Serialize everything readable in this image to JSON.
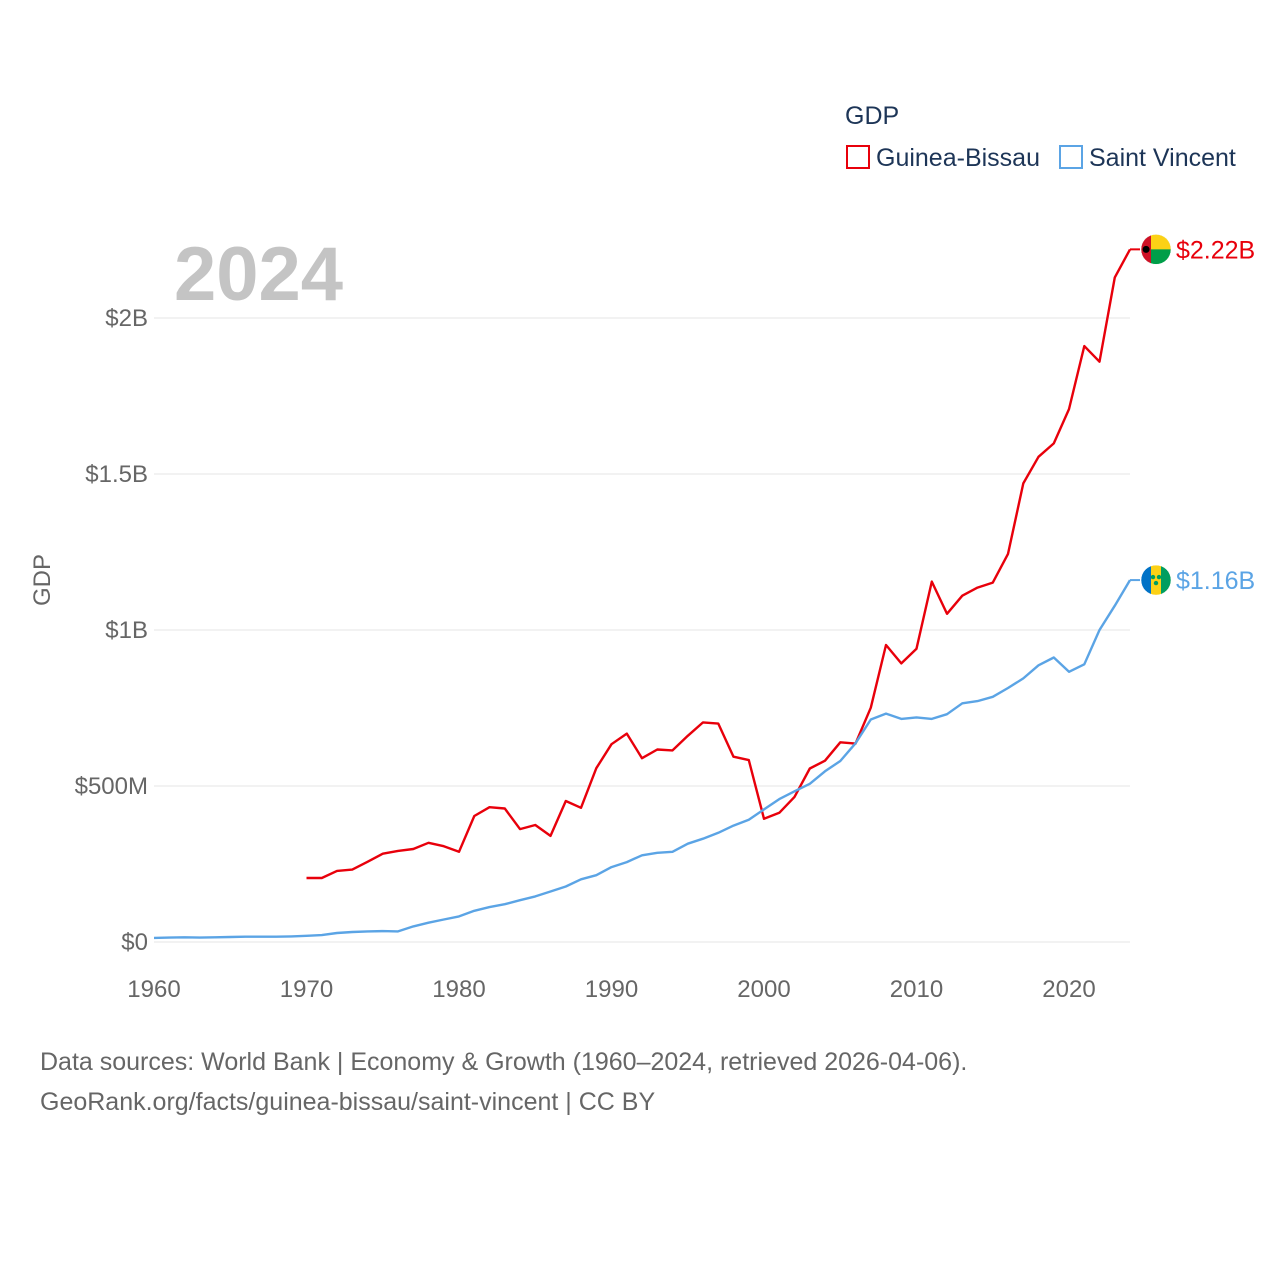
{
  "chart_data": {
    "type": "line",
    "year_label": "2024",
    "ylabel": "GDP",
    "legend": {
      "title": "GDP",
      "position": "top-right"
    },
    "x_ticks": [
      1960,
      1970,
      1980,
      1990,
      2000,
      2010,
      2020
    ],
    "xlim": [
      1960,
      2024
    ],
    "y_ticks": [
      {
        "value": 0,
        "label": "$0"
      },
      {
        "value": 500000000,
        "label": "$500M"
      },
      {
        "value": 1000000000,
        "label": "$1B"
      },
      {
        "value": 1500000000,
        "label": "$1.5B"
      },
      {
        "value": 2000000000,
        "label": "$2B"
      }
    ],
    "ylim": [
      0,
      2300000000
    ],
    "series": [
      {
        "name": "Guinea-Bissau",
        "color": "#e8000b",
        "end_label": "$2.22B",
        "flag": "guinea-bissau-flag-icon",
        "x": [
          1970,
          1971,
          1972,
          1973,
          1974,
          1975,
          1976,
          1977,
          1978,
          1979,
          1980,
          1981,
          1982,
          1983,
          1984,
          1985,
          1986,
          1987,
          1988,
          1989,
          1990,
          1991,
          1992,
          1993,
          1994,
          1995,
          1996,
          1997,
          1998,
          1999,
          2000,
          2001,
          2002,
          2003,
          2004,
          2005,
          2006,
          2007,
          2008,
          2009,
          2010,
          2011,
          2012,
          2013,
          2014,
          2015,
          2016,
          2017,
          2018,
          2019,
          2020,
          2021,
          2022,
          2023,
          2024
        ],
        "y": [
          205000000,
          205000000,
          228000000,
          232000000,
          257000000,
          283000000,
          292000000,
          298000000,
          318000000,
          307000000,
          289000000,
          404000000,
          432000000,
          428000000,
          362000000,
          375000000,
          340000000,
          452000000,
          430000000,
          557000000,
          634000000,
          668000000,
          589000000,
          617000000,
          614000000,
          661000000,
          704000000,
          700000000,
          594000000,
          583000000,
          395000000,
          414000000,
          465000000,
          556000000,
          581000000,
          640000000,
          636000000,
          751000000,
          952000000,
          893000000,
          940000000,
          1155000000,
          1052000000,
          1110000000,
          1136000000,
          1152000000,
          1244000000,
          1470000000,
          1555000000,
          1598000000,
          1708000000,
          1910000000,
          1860000000,
          2130000000,
          2220000000
        ]
      },
      {
        "name": "Saint Vincent",
        "color": "#5ba4e5",
        "end_label": "$1.16B",
        "flag": "saint-vincent-flag-icon",
        "x": [
          1960,
          1961,
          1962,
          1963,
          1964,
          1965,
          1966,
          1967,
          1968,
          1969,
          1970,
          1971,
          1972,
          1973,
          1974,
          1975,
          1976,
          1977,
          1978,
          1979,
          1980,
          1981,
          1982,
          1983,
          1984,
          1985,
          1986,
          1987,
          1988,
          1989,
          1990,
          1991,
          1992,
          1993,
          1994,
          1995,
          1996,
          1997,
          1998,
          1999,
          2000,
          2001,
          2002,
          2003,
          2004,
          2005,
          2006,
          2007,
          2008,
          2009,
          2010,
          2011,
          2012,
          2013,
          2014,
          2015,
          2016,
          2017,
          2018,
          2019,
          2020,
          2021,
          2022,
          2023,
          2024
        ],
        "y": [
          13000000,
          14000000,
          15000000,
          14000000,
          15000000,
          16000000,
          17000000,
          17000000,
          17000000,
          18000000,
          20000000,
          22000000,
          29000000,
          32000000,
          34000000,
          35000000,
          34000000,
          50000000,
          62000000,
          72000000,
          82000000,
          100000000,
          112000000,
          121000000,
          134000000,
          146000000,
          162000000,
          178000000,
          201000000,
          214000000,
          240000000,
          256000000,
          278000000,
          286000000,
          289000000,
          315000000,
          331000000,
          350000000,
          373000000,
          392000000,
          425000000,
          458000000,
          483000000,
          507000000,
          547000000,
          580000000,
          637000000,
          713000000,
          732000000,
          715000000,
          720000000,
          715000000,
          730000000,
          765000000,
          772000000,
          786000000,
          814000000,
          845000000,
          887000000,
          912000000,
          866000000,
          890000000,
          1000000000,
          1078000000,
          1160000000
        ]
      }
    ]
  },
  "footer": {
    "line1": "Data sources: World Bank | Economy & Growth (1960–2024, retrieved 2026-04-06).",
    "line2": "GeoRank.org/facts/guinea-bissau/saint-vincent | CC BY"
  }
}
